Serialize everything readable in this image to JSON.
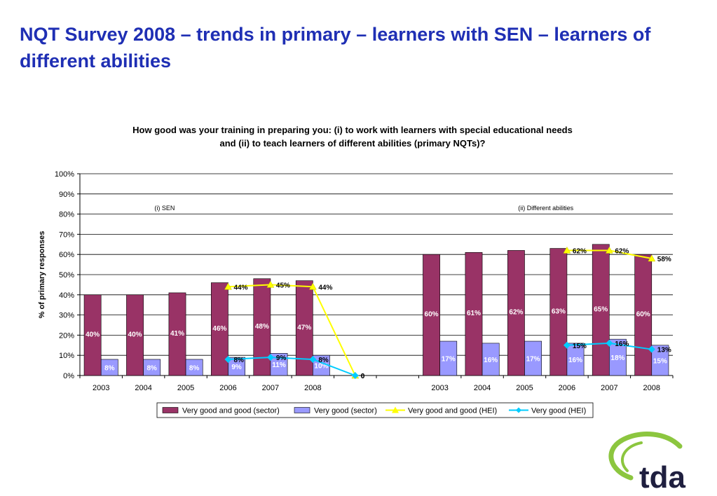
{
  "slide": {
    "title": "NQT Survey 2008 – trends in primary – learners with SEN – learners of different abilities"
  },
  "logo": {
    "text": "tda",
    "colors": {
      "accent": "#8cc63f",
      "text": "#1f1f3f"
    }
  },
  "colors": {
    "sector_good": "#993366",
    "sector_verygood": "#9999ff",
    "hei_good": "#ffff00",
    "hei_verygood": "#00ccff",
    "title": "#1f2fb4"
  },
  "chart_data": {
    "type": "bar",
    "title_lines": [
      "How good was your training in preparing you: (i) to work with learners with special educational needs",
      "and (ii) to teach learners of different abilities (primary NQTs)?"
    ],
    "ylabel": "% of primary responses",
    "ylim": [
      0,
      100
    ],
    "yticks": [
      "0%",
      "10%",
      "20%",
      "30%",
      "40%",
      "50%",
      "60%",
      "70%",
      "80%",
      "90%",
      "100%"
    ],
    "grid": true,
    "legend_position": "bottom",
    "group_labels": [
      "(i) SEN",
      "(ii) Different abilities"
    ],
    "categories": [
      "2003",
      "2004",
      "2005",
      "2006",
      "2007",
      "2008",
      "",
      "",
      "2003",
      "2004",
      "2005",
      "2006",
      "2007",
      "2008"
    ],
    "series": [
      {
        "name": "Very good and good (sector)",
        "kind": "bar",
        "values": [
          40,
          40,
          41,
          46,
          48,
          47,
          null,
          null,
          60,
          61,
          62,
          63,
          65,
          60
        ]
      },
      {
        "name": "Very good (sector)",
        "kind": "bar",
        "values": [
          8,
          8,
          8,
          9,
          11,
          10,
          null,
          null,
          17,
          16,
          17,
          16,
          18,
          15
        ]
      },
      {
        "name": "Very good and good (HEI)",
        "kind": "line",
        "values": [
          null,
          null,
          null,
          44,
          45,
          44,
          0,
          null,
          null,
          null,
          null,
          62,
          62,
          58
        ]
      },
      {
        "name": "Very good (HEI)",
        "kind": "line",
        "values": [
          null,
          null,
          null,
          8,
          9,
          8,
          0,
          null,
          null,
          null,
          null,
          15,
          16,
          13
        ]
      }
    ],
    "gap_zero_labels": [
      "0",
      "0"
    ]
  }
}
